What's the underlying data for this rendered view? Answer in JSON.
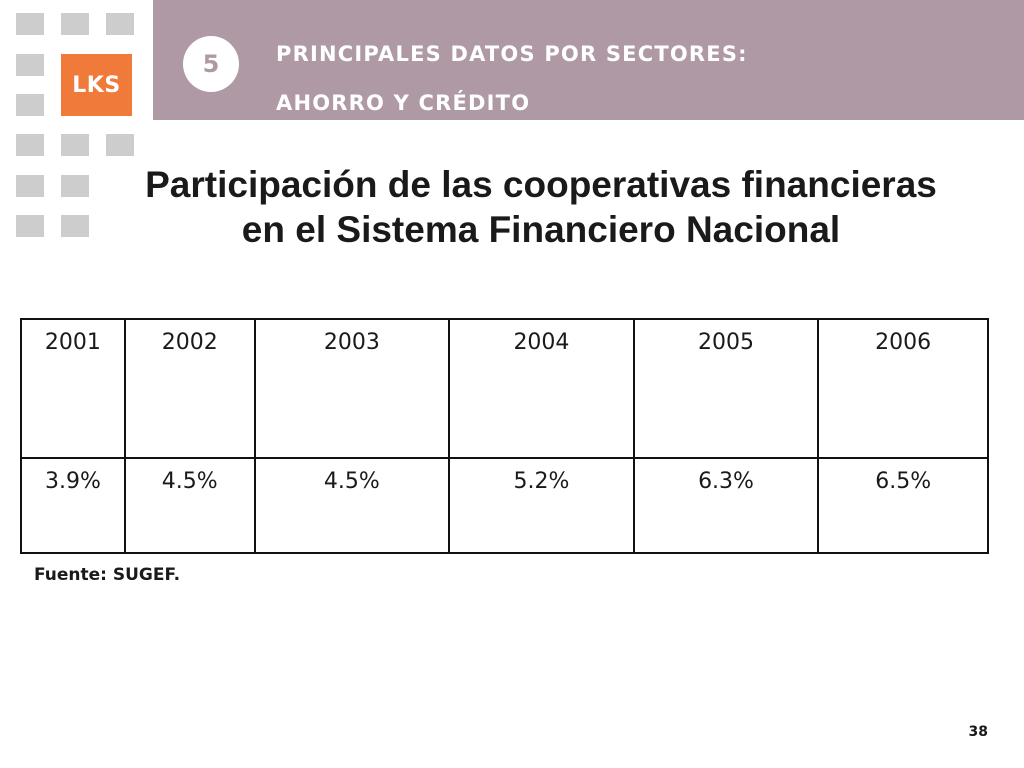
{
  "header": {
    "section_number": "5",
    "line1": "PRINCIPALES DATOS POR SECTORES:",
    "line2": "AHORRO Y CRÉDITO"
  },
  "logo": {
    "text": "LKS"
  },
  "colors": {
    "header_band": "#af99a5",
    "logo": "#f07a3a",
    "squares": "#cdcdcd"
  },
  "title": {
    "line1": "Participación de las cooperativas financieras",
    "line2": "en el Sistema Financiero Nacional"
  },
  "table": {
    "years": [
      "2001",
      "2002",
      "2003",
      "2004",
      "2005",
      "2006"
    ],
    "values": [
      "3.9%",
      "4.5%",
      "4.5%",
      "5.2%",
      "6.3%",
      "6.5%"
    ]
  },
  "source": "Fuente: SUGEF.",
  "page_number": "38"
}
